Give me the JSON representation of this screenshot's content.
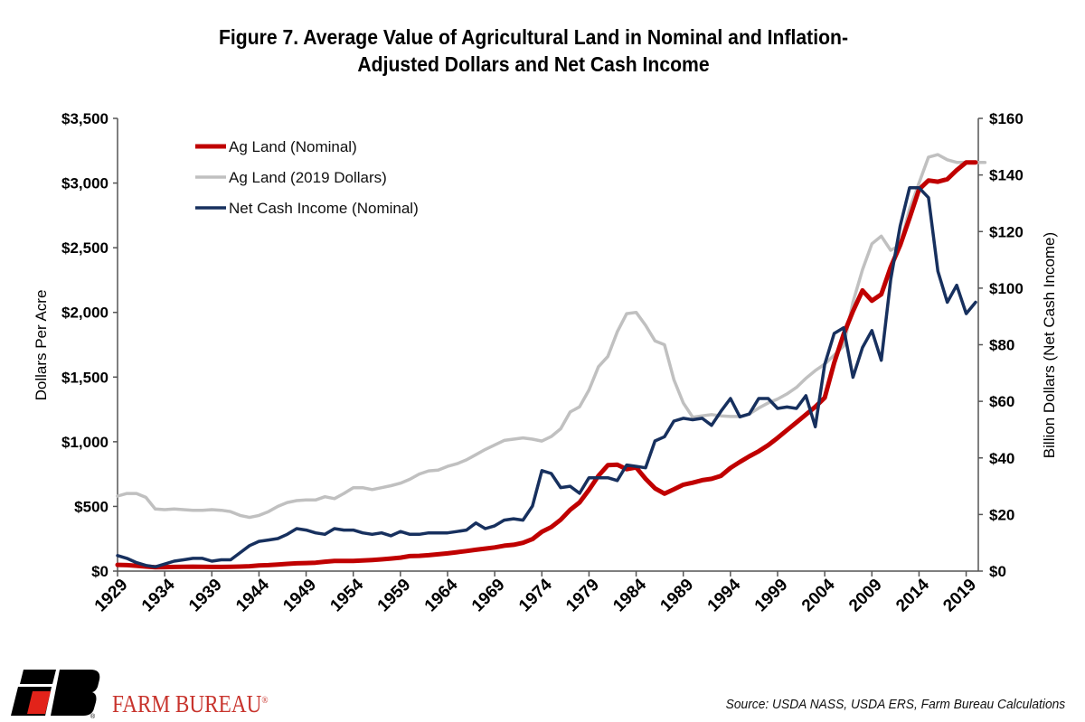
{
  "chart_data": {
    "type": "line",
    "title": [
      "Figure 7. Average Value of Agricultural Land in Nominal and Inflation-",
      "Adjusted Dollars and Net Cash Income"
    ],
    "ylabel": "Dollars Per Acre",
    "ylabel_right": "Billion Dollars (Net Cash Income)",
    "ylim": [
      0,
      3500
    ],
    "ylim_right": [
      0,
      160
    ],
    "yticks": [
      "$0",
      "$500",
      "$1,000",
      "$1,500",
      "$2,000",
      "$2,500",
      "$3,000",
      "$3,500"
    ],
    "yticks_right": [
      "$0",
      "$20",
      "$40",
      "$60",
      "$80",
      "$100",
      "$120",
      "$140",
      "$160"
    ],
    "xticks": [
      "1929",
      "1934",
      "1939",
      "1944",
      "1949",
      "1954",
      "1959",
      "1964",
      "1969",
      "1974",
      "1979",
      "1984",
      "1989",
      "1994",
      "1999",
      "2004",
      "2009",
      "2014",
      "2019"
    ],
    "x_start": 1929,
    "x_end": 2020,
    "grid": false,
    "legend_placement": "top-left",
    "series": [
      {
        "name": "Ag Land (Nominal)",
        "axis": "left",
        "color": "#c00000",
        "values": [
          48,
          46,
          41,
          35,
          30,
          31,
          32,
          33,
          34,
          33,
          32,
          32,
          33,
          35,
          38,
          43,
          46,
          51,
          56,
          60,
          62,
          65,
          73,
          78,
          78,
          79,
          82,
          86,
          91,
          97,
          104,
          116,
          118,
          123,
          130,
          137,
          146,
          155,
          165,
          174,
          183,
          196,
          203,
          219,
          247,
          304,
          340,
          397,
          474,
          531,
          628,
          737,
          819,
          823,
          788,
          801,
          713,
          640,
          599,
          632,
          668,
          683,
          703,
          713,
          736,
          798,
          844,
          887,
          926,
          974,
          1030,
          1090,
          1150,
          1210,
          1270,
          1340,
          1610,
          1830,
          2010,
          2170,
          2090,
          2140,
          2350,
          2520,
          2730,
          2950,
          3020,
          3010,
          3030,
          3100,
          3160,
          3160
        ]
      },
      {
        "name": "Ag Land (2019 Dollars)",
        "axis": "left",
        "color": "#c0c0c0",
        "values": [
          580,
          600,
          600,
          570,
          480,
          475,
          480,
          475,
          470,
          470,
          475,
          470,
          460,
          430,
          415,
          430,
          460,
          500,
          530,
          545,
          550,
          550,
          575,
          560,
          600,
          645,
          645,
          630,
          645,
          660,
          680,
          710,
          750,
          775,
          780,
          810,
          830,
          860,
          900,
          940,
          975,
          1010,
          1020,
          1030,
          1020,
          1005,
          1040,
          1100,
          1230,
          1270,
          1400,
          1580,
          1660,
          1850,
          1990,
          2000,
          1900,
          1780,
          1750,
          1480,
          1300,
          1190,
          1200,
          1210,
          1200,
          1195,
          1195,
          1215,
          1260,
          1300,
          1330,
          1370,
          1420,
          1490,
          1550,
          1600,
          1670,
          1740,
          2080,
          2330,
          2530,
          2590,
          2480,
          2520,
          2800,
          3000,
          3200,
          3220,
          3180,
          3160,
          3160,
          3160,
          3160
        ]
      },
      {
        "name": "Net Cash Income (Nominal)",
        "axis": "right",
        "color": "#17305e",
        "values": [
          5.5,
          4.5,
          3,
          2,
          1.5,
          2.5,
          3.5,
          4,
          4.5,
          4.5,
          3.5,
          4,
          4,
          6.5,
          9,
          10.5,
          11,
          11.5,
          13,
          15,
          14.5,
          13.5,
          13,
          15,
          14.5,
          14.5,
          13.5,
          13,
          13.5,
          12.5,
          14,
          13,
          13,
          13.5,
          13.5,
          13.5,
          14,
          14.5,
          17,
          15,
          16,
          18,
          18.5,
          18,
          23,
          35.5,
          34.5,
          29.5,
          30,
          27.5,
          33,
          33,
          33,
          32,
          37.5,
          37,
          36.5,
          46,
          47.5,
          53,
          54,
          53.5,
          54,
          51.5,
          56.5,
          61,
          54.5,
          55.5,
          61,
          61,
          57.5,
          58,
          57.5,
          62,
          51,
          73,
          84,
          86,
          68.5,
          79,
          85,
          74.5,
          103,
          122,
          135.5,
          135.5,
          132,
          106,
          95,
          101,
          91,
          95
        ]
      }
    ]
  },
  "footer": {
    "brand": "FARM BUREAU",
    "brand_mark": "®",
    "logo_letters": "FB",
    "logo_colors": {
      "black": "#000000",
      "red": "#e2231a"
    },
    "source": "Source: USDA NASS, USDA ERS, Farm Bureau Calculations"
  }
}
